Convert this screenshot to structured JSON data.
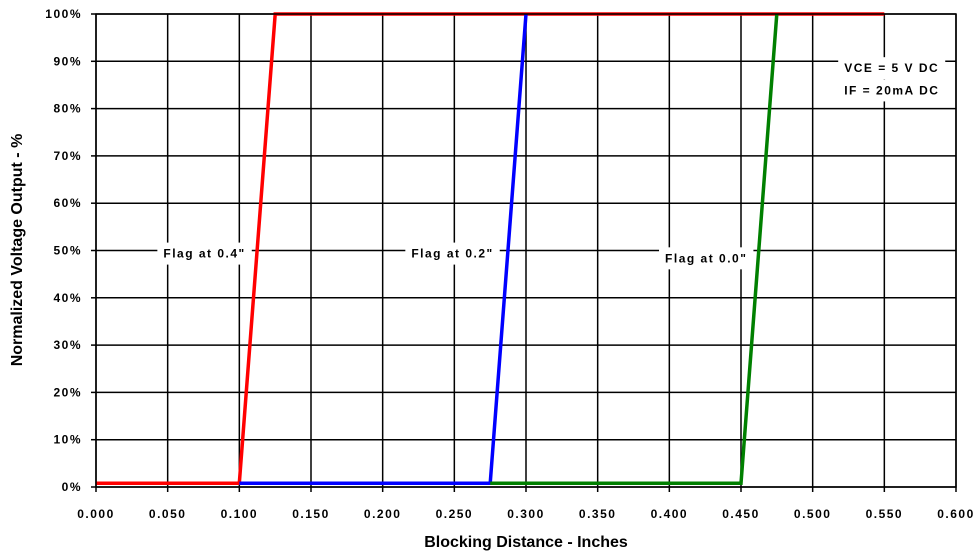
{
  "chart_data": {
    "type": "line",
    "title": "",
    "xlabel": "Blocking Distance - Inches",
    "ylabel": "Normalized Voltage Output - %",
    "xlim": [
      0.0,
      0.6
    ],
    "ylim": [
      0,
      100
    ],
    "grid": true,
    "legend": "none",
    "x_ticks": [
      0.0,
      0.05,
      0.1,
      0.15,
      0.2,
      0.25,
      0.3,
      0.35,
      0.4,
      0.45,
      0.5,
      0.55,
      0.6
    ],
    "x_tick_labels": [
      "0.000",
      "0.050",
      "0.100",
      "0.150",
      "0.200",
      "0.250",
      "0.300",
      "0.350",
      "0.400",
      "0.450",
      "0.500",
      "0.550",
      "0.600"
    ],
    "y_ticks": [
      0,
      10,
      20,
      30,
      40,
      50,
      60,
      70,
      80,
      90,
      100
    ],
    "y_tick_labels": [
      "0%",
      "10%",
      "20%",
      "30%",
      "40%",
      "50%",
      "60%",
      "70%",
      "80%",
      "90%",
      "100%"
    ],
    "series": [
      {
        "color": "#ff0000",
        "x": [
          0.0,
          0.1,
          0.125,
          0.55
        ],
        "y": [
          0.8,
          0.8,
          100,
          100
        ]
      },
      {
        "color": "#0000ff",
        "x": [
          0.1,
          0.275,
          0.3
        ],
        "y": [
          0.8,
          0.8,
          100
        ]
      },
      {
        "color": "#008000",
        "x": [
          0.275,
          0.45,
          0.475
        ],
        "y": [
          0.8,
          0.8,
          100
        ]
      }
    ],
    "annotations": [
      {
        "text": "Flag at 0.4\"",
        "x": 0.047,
        "y": 48.5
      },
      {
        "text": "Flag at 0.2\"",
        "x": 0.22,
        "y": 48.5
      },
      {
        "text": "Flag at 0.0\"",
        "x": 0.397,
        "y": 47.5
      },
      {
        "text": "VCE = 5 V DC",
        "x": 0.522,
        "y": 87.7
      },
      {
        "text": "IF = 20mA DC",
        "x": 0.522,
        "y": 83
      }
    ]
  }
}
